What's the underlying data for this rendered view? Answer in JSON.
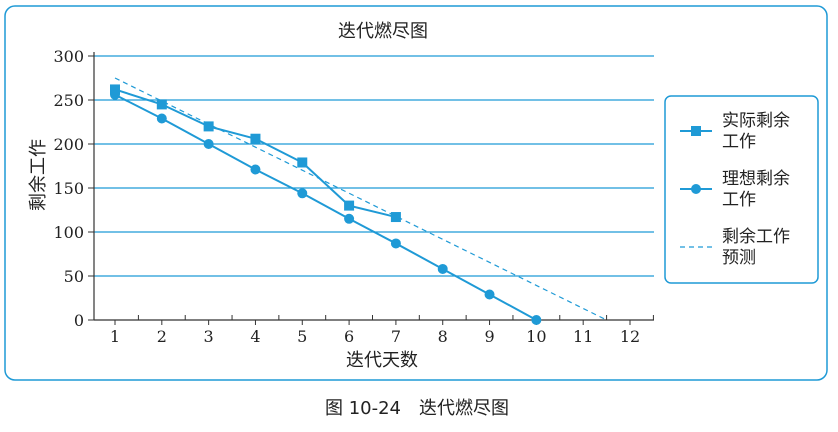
{
  "chart_data": {
    "type": "line",
    "title": "迭代燃尽图",
    "xlabel": "迭代天数",
    "ylabel": "剩余工作",
    "x_ticks": [
      1,
      2,
      3,
      4,
      5,
      6,
      7,
      8,
      9,
      10,
      11,
      12
    ],
    "y_ticks": [
      0,
      50,
      100,
      150,
      200,
      250,
      300
    ],
    "xlim": [
      1,
      12
    ],
    "ylim": [
      0,
      300
    ],
    "grid": "horizontal",
    "legend_position": "right",
    "series": [
      {
        "name": "实际剩余工作",
        "name_lines": [
          "实际剩余",
          "工作"
        ],
        "marker": "square",
        "style": "solid",
        "color": "#1f9ad6",
        "points": [
          [
            1,
            262
          ],
          [
            2,
            245
          ],
          [
            3,
            220
          ],
          [
            4,
            206
          ],
          [
            5,
            179
          ],
          [
            6,
            130
          ],
          [
            7,
            117
          ]
        ]
      },
      {
        "name": "理想剩余工作",
        "name_lines": [
          "理想剩余",
          "工作"
        ],
        "marker": "circle",
        "style": "solid",
        "color": "#1f9ad6",
        "points": [
          [
            1,
            256
          ],
          [
            2,
            229
          ],
          [
            3,
            200
          ],
          [
            4,
            171
          ],
          [
            5,
            144
          ],
          [
            6,
            115
          ],
          [
            7,
            87
          ],
          [
            8,
            58
          ],
          [
            9,
            29
          ],
          [
            10,
            0
          ]
        ]
      },
      {
        "name": "剩余工作预测",
        "name_lines": [
          "剩余工作",
          "预测"
        ],
        "marker": "none",
        "style": "dashed",
        "color": "#1f9ad6",
        "points": [
          [
            1,
            275
          ],
          [
            11.5,
            0
          ]
        ]
      }
    ]
  },
  "caption": "图 10-24　迭代燃尽图",
  "colors": {
    "series": "#1f9ad6",
    "grid": "#1f9ad6",
    "frame": "#1f9ad6",
    "axis": "#333333"
  }
}
